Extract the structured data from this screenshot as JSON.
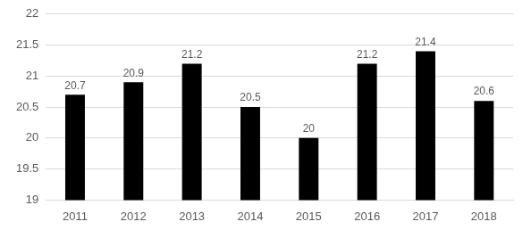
{
  "chart_data": {
    "type": "bar",
    "categories": [
      "2011",
      "2012",
      "2013",
      "2014",
      "2015",
      "2016",
      "2017",
      "2018"
    ],
    "values": [
      20.7,
      20.9,
      21.2,
      20.5,
      20,
      21.2,
      21.4,
      20.6
    ],
    "color": "#000000",
    "ylim": [
      19,
      22
    ],
    "yticks": [
      19,
      19.5,
      20,
      20.5,
      21,
      21.5,
      22
    ],
    "grid": true,
    "data_labels": true
  }
}
